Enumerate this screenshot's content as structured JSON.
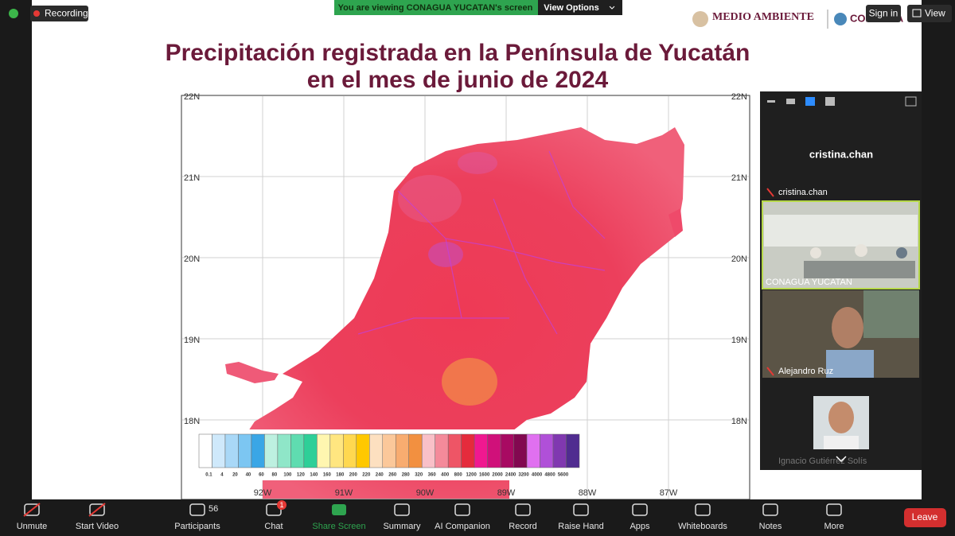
{
  "top_bar": {
    "recording": "Recording",
    "banner": "You are viewing CONAGUA YUCATAN's screen",
    "view_options": "View Options",
    "sign_in": "Sign in",
    "view": "View"
  },
  "slide": {
    "logo": "MEDIO AMBIENTE",
    "logo2": "CONAGUA",
    "title_lines": [
      "Precipitación registrada en la Península de Yucatán",
      "en el mes de junio de 2024"
    ],
    "map": {
      "lat_labels": [
        "22N",
        "21N",
        "20N",
        "19N",
        "18N"
      ],
      "lon_labels": [
        "92W",
        "91W",
        "90W",
        "89W",
        "88W",
        "87W"
      ],
      "legend_labels": [
        "0.1",
        "4",
        "20",
        "40",
        "60",
        "80",
        "100",
        "120",
        "140",
        "160",
        "180",
        "200",
        "220",
        "240",
        "260",
        "280",
        "320",
        "360",
        "400",
        "800",
        "1200",
        "1600",
        "2000",
        "2400",
        "3200",
        "4000",
        "4800",
        "5600"
      ],
      "legend_colors": [
        "#ffffff",
        "#cfe9fb",
        "#a9d8f7",
        "#7cc6f2",
        "#3aa6e6",
        "#bdf0e0",
        "#8fe6c8",
        "#5fdcb0",
        "#2ecf98",
        "#fff6b0",
        "#ffe680",
        "#ffd850",
        "#ffc800",
        "#fde0c0",
        "#fbc89a",
        "#f8ac70",
        "#f29040",
        "#f9c0c8",
        "#f48a9a",
        "#ee5566",
        "#e52b3c",
        "#f01890",
        "#d0107a",
        "#a80a62",
        "#820850",
        "#e070f0",
        "#b050d8",
        "#8038b0",
        "#502c90"
      ]
    }
  },
  "panel": {
    "speaker": "cristina.chan",
    "tiles": [
      "cristina.chan",
      "CONAGUA YUCATAN",
      "Alejandro Ruz",
      "Ignacio Gutiérrez Solís"
    ]
  },
  "toolbar": {
    "items": [
      "Unmute",
      "Start Video",
      "Participants",
      "Chat",
      "Share Screen",
      "Summary",
      "AI Companion",
      "Record",
      "Raise Hand",
      "Apps",
      "Whiteboards",
      "Notes",
      "More"
    ],
    "participants_count": "56",
    "chat_badge": "1",
    "leave": "Leave"
  }
}
